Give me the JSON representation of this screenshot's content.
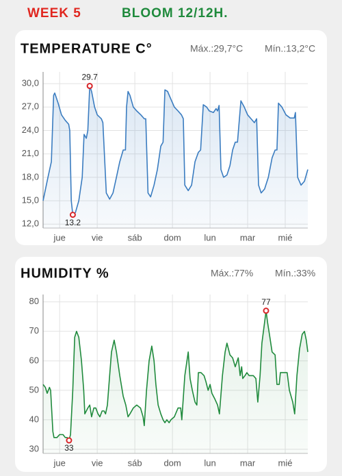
{
  "header": {
    "week": "WEEK 5",
    "stage": "BLOOM 12/12H."
  },
  "chart_data": [
    {
      "type": "line",
      "title": "TEMPERATURE C°",
      "max_label": "Máx.:29,7°C",
      "min_label": "Mín.:13,2°C",
      "color": "#3a7cc0",
      "area": true,
      "grid": true,
      "xlim": [
        -0.44,
        6.6
      ],
      "xticks": [
        {
          "value": 0,
          "label": "jue"
        },
        {
          "value": 1,
          "label": "vie"
        },
        {
          "value": 2,
          "label": "sáb"
        },
        {
          "value": 3,
          "label": "dom"
        },
        {
          "value": 4,
          "label": "lun"
        },
        {
          "value": 5,
          "label": "mar"
        },
        {
          "value": 6,
          "label": "mié"
        }
      ],
      "ylim": [
        11.5,
        31.5
      ],
      "yticks": [
        {
          "value": 12,
          "label": "12,0"
        },
        {
          "value": 15,
          "label": "15,0"
        },
        {
          "value": 18,
          "label": "18,0"
        },
        {
          "value": 21,
          "label": "21,0"
        },
        {
          "value": 24,
          "label": "24,0"
        },
        {
          "value": 27,
          "label": "27,0"
        },
        {
          "value": 30,
          "label": "30,0"
        }
      ],
      "x": [
        -0.44,
        -0.31,
        -0.22,
        -0.16,
        -0.13,
        -0.04,
        0.05,
        0.15,
        0.24,
        0.27,
        0.31,
        0.35,
        0.42,
        0.51,
        0.6,
        0.65,
        0.71,
        0.75,
        0.8,
        0.85,
        0.93,
        1.0,
        1.11,
        1.15,
        1.24,
        1.33,
        1.42,
        1.51,
        1.6,
        1.69,
        1.75,
        1.78,
        1.82,
        1.87,
        1.96,
        2.05,
        2.16,
        2.25,
        2.29,
        2.35,
        2.42,
        2.51,
        2.6,
        2.69,
        2.75,
        2.8,
        2.87,
        2.96,
        3.05,
        3.15,
        3.24,
        3.29,
        3.33,
        3.42,
        3.51,
        3.6,
        3.69,
        3.75,
        3.82,
        3.91,
        3.98,
        4.09,
        4.16,
        4.2,
        4.24,
        4.29,
        4.36,
        4.45,
        4.53,
        4.6,
        4.67,
        4.73,
        4.82,
        4.91,
        5.0,
        5.09,
        5.18,
        5.24,
        5.29,
        5.36,
        5.45,
        5.55,
        5.65,
        5.73,
        5.78,
        5.82,
        5.91,
        6.02,
        6.13,
        6.24,
        6.27,
        6.33,
        6.42,
        6.51,
        6.6
      ],
      "values": [
        15,
        18,
        20,
        28.5,
        28.8,
        27.5,
        26,
        25.3,
        24.8,
        24,
        15,
        13.2,
        13.5,
        15,
        18,
        23.5,
        23,
        24,
        29.7,
        29,
        27,
        26,
        25.5,
        25,
        16,
        15.2,
        16,
        18,
        20,
        21.5,
        21.5,
        27,
        29,
        28.5,
        27,
        26.5,
        26,
        25.5,
        25.5,
        16,
        15.5,
        17,
        19,
        22,
        22.5,
        29.2,
        29,
        28,
        27,
        26.5,
        26,
        25.5,
        17,
        16.3,
        17,
        20,
        21.2,
        21.5,
        27.3,
        27,
        26.5,
        26.3,
        26.8,
        26.5,
        27.2,
        19,
        18,
        18.3,
        19.5,
        21.5,
        22.5,
        22.5,
        27.8,
        27,
        26,
        25.5,
        25,
        25.5,
        17,
        16,
        16.5,
        18,
        20.5,
        21.5,
        21.5,
        27.5,
        27,
        26,
        25.6,
        25.6,
        26.3,
        18,
        17,
        17.5,
        19
      ],
      "markers": [
        {
          "x": 0.8,
          "y": 29.7
        },
        {
          "x": 0.35,
          "y": 13.2
        }
      ]
    },
    {
      "type": "line",
      "title": "HUMIDITY %",
      "max_label": "Máx.:77%",
      "min_label": "Mín.:33%",
      "color": "#1f8a3c",
      "area": true,
      "grid": true,
      "xlim": [
        -0.44,
        6.6
      ],
      "xticks": [
        {
          "value": 0,
          "label": "jue"
        },
        {
          "value": 1,
          "label": "vie"
        },
        {
          "value": 2,
          "label": "sáb"
        },
        {
          "value": 3,
          "label": "dom"
        },
        {
          "value": 4,
          "label": "lun"
        },
        {
          "value": 5,
          "label": "mar"
        },
        {
          "value": 6,
          "label": "mié"
        }
      ],
      "ylim": [
        28.6,
        82.5
      ],
      "yticks": [
        30,
        40,
        50,
        60,
        70,
        80
      ],
      "x": [
        -0.44,
        -0.38,
        -0.33,
        -0.27,
        -0.24,
        -0.18,
        -0.15,
        -0.07,
        0,
        0.09,
        0.15,
        0.2,
        0.25,
        0.29,
        0.35,
        0.4,
        0.45,
        0.51,
        0.58,
        0.64,
        0.67,
        0.75,
        0.8,
        0.85,
        0.91,
        0.96,
        1.02,
        1.07,
        1.13,
        1.18,
        1.22,
        1.27,
        1.33,
        1.38,
        1.45,
        1.51,
        1.6,
        1.69,
        1.76,
        1.82,
        1.87,
        1.96,
        2.05,
        2.15,
        2.22,
        2.25,
        2.31,
        2.38,
        2.45,
        2.51,
        2.56,
        2.62,
        2.69,
        2.75,
        2.8,
        2.85,
        2.91,
        2.96,
        3.05,
        3.15,
        3.22,
        3.25,
        3.33,
        3.42,
        3.47,
        3.53,
        3.6,
        3.65,
        3.69,
        3.76,
        3.84,
        3.89,
        3.95,
        4.0,
        4.05,
        4.13,
        4.2,
        4.25,
        4.33,
        4.4,
        4.45,
        4.53,
        4.6,
        4.67,
        4.75,
        4.8,
        4.84,
        4.87,
        4.93,
        4.98,
        5.04,
        5.15,
        5.22,
        5.27,
        5.33,
        5.38,
        5.45,
        5.49,
        5.53,
        5.58,
        5.65,
        5.73,
        5.78,
        5.84,
        5.87,
        5.96,
        6.05,
        6.11,
        6.2,
        6.25,
        6.31,
        6.38,
        6.45,
        6.51,
        6.56,
        6.6
      ],
      "values": [
        52,
        51,
        49,
        51,
        50,
        36,
        34,
        34,
        35,
        35,
        34,
        34,
        33,
        35,
        50,
        68,
        70,
        68,
        60,
        50,
        42,
        44,
        45,
        41,
        44,
        44,
        42,
        41,
        43,
        43,
        42,
        45,
        55,
        63,
        67,
        63,
        55,
        48,
        45,
        41,
        42,
        44,
        45,
        44,
        41,
        38,
        50,
        60,
        65,
        60,
        52,
        45,
        42,
        40,
        39,
        40,
        39,
        40,
        41,
        44,
        44,
        40,
        55,
        63,
        54,
        50,
        46,
        45,
        56,
        56,
        55,
        53,
        50,
        52,
        49,
        47,
        45,
        42,
        55,
        63,
        66,
        62,
        61,
        58,
        61,
        55,
        58,
        54,
        55,
        56,
        55,
        55,
        54,
        46,
        55,
        66,
        73,
        77,
        73,
        69,
        63,
        62,
        52,
        52,
        56,
        56,
        56,
        50,
        46,
        42,
        55,
        64,
        69,
        70,
        67,
        63
      ],
      "markers": [
        {
          "x": 5.49,
          "y": 77
        },
        {
          "x": 0.25,
          "y": 33
        }
      ]
    }
  ]
}
